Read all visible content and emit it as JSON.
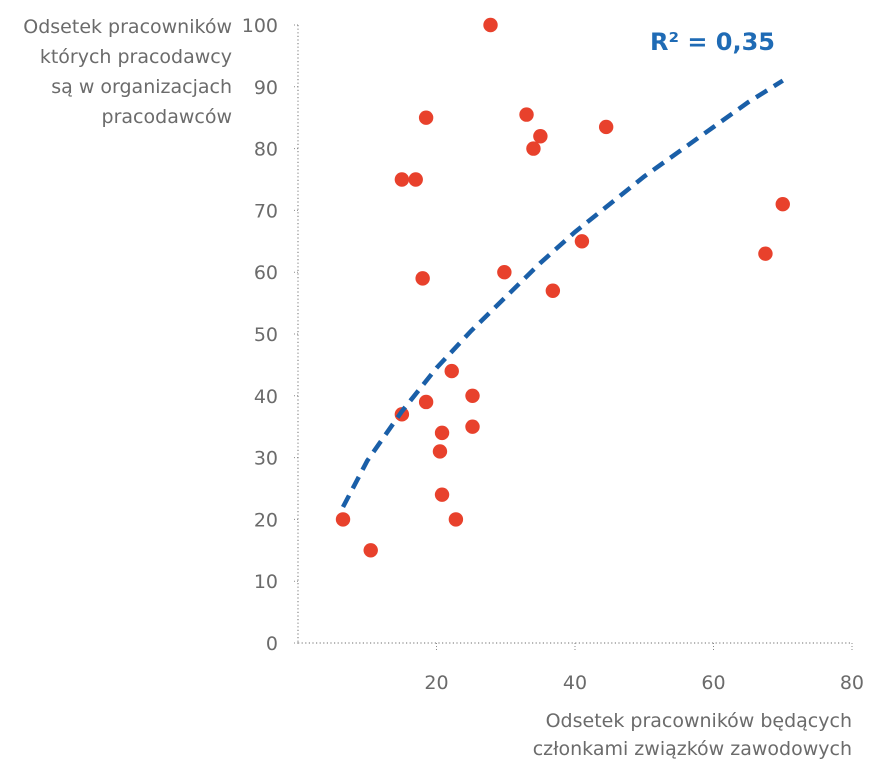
{
  "chart_data": {
    "type": "scatter",
    "title": "",
    "ylabel_lines": [
      "Odsetek pracowników",
      "których pracodawcy",
      "są w organizacjach",
      "pracodawców"
    ],
    "xlabel_lines": [
      "Odsetek pracowników będących",
      "członkami związków zawodowych"
    ],
    "annotation": "R² = 0,35",
    "xlim": [
      0,
      80
    ],
    "ylim": [
      0,
      100
    ],
    "x_ticks": [
      "20",
      "40",
      "60",
      "80"
    ],
    "x_tick_values": [
      20,
      40,
      60,
      80
    ],
    "y_ticks": [
      "0",
      "10",
      "20",
      "30",
      "40",
      "50",
      "60",
      "70",
      "80",
      "90",
      "100"
    ],
    "y_tick_values": [
      0,
      10,
      20,
      30,
      40,
      50,
      60,
      70,
      80,
      90,
      100
    ],
    "grid": false,
    "points_color": "#e8412c",
    "trend_color": "#1a5fa8",
    "points": [
      {
        "x": 6.5,
        "y": 20
      },
      {
        "x": 10.5,
        "y": 15
      },
      {
        "x": 15,
        "y": 75
      },
      {
        "x": 15,
        "y": 37
      },
      {
        "x": 17,
        "y": 75
      },
      {
        "x": 18,
        "y": 59
      },
      {
        "x": 18.5,
        "y": 85
      },
      {
        "x": 18.5,
        "y": 39
      },
      {
        "x": 20.5,
        "y": 31
      },
      {
        "x": 20.8,
        "y": 34
      },
      {
        "x": 20.8,
        "y": 24
      },
      {
        "x": 22.2,
        "y": 44
      },
      {
        "x": 22.8,
        "y": 20
      },
      {
        "x": 25.2,
        "y": 40
      },
      {
        "x": 25.2,
        "y": 35
      },
      {
        "x": 27.8,
        "y": 100
      },
      {
        "x": 29.8,
        "y": 60
      },
      {
        "x": 33,
        "y": 85.5
      },
      {
        "x": 34,
        "y": 80
      },
      {
        "x": 35,
        "y": 82
      },
      {
        "x": 36.8,
        "y": 57
      },
      {
        "x": 41,
        "y": 65
      },
      {
        "x": 44.5,
        "y": 83.5
      },
      {
        "x": 67.5,
        "y": 63
      },
      {
        "x": 70,
        "y": 71
      }
    ],
    "trendline": {
      "type": "power",
      "x": [
        6.5,
        10,
        15,
        20,
        25,
        30,
        35,
        40,
        45,
        50,
        55,
        60,
        65,
        70
      ],
      "y": [
        22,
        29.5,
        37.5,
        44.5,
        50.5,
        56,
        61.5,
        66.5,
        71,
        75.5,
        79.5,
        83.5,
        87.5,
        91
      ]
    }
  }
}
